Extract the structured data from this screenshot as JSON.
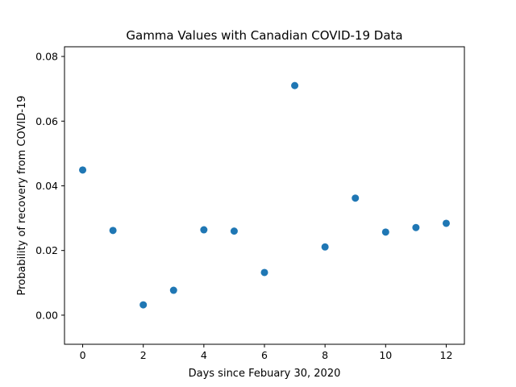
{
  "chart_data": {
    "type": "scatter",
    "title": "Gamma Values with Canadian COVID-19 Data",
    "xlabel": "Days since Febuary 30, 2020",
    "ylabel": "Probability of recovery from COVID-19",
    "xlim": [
      -0.6,
      12.6
    ],
    "ylim": [
      -0.009,
      0.083
    ],
    "xticks": [
      0,
      2,
      4,
      6,
      8,
      10,
      12
    ],
    "xtick_labels": [
      "0",
      "2",
      "4",
      "6",
      "8",
      "10",
      "12"
    ],
    "yticks": [
      0.0,
      0.02,
      0.04,
      0.06,
      0.08
    ],
    "ytick_labels": [
      "0.00",
      "0.02",
      "0.04",
      "0.06",
      "0.08"
    ],
    "grid": false,
    "marker_color": "#1f77b4",
    "series": [
      {
        "x": [
          0,
          1,
          2,
          3,
          4,
          5,
          6,
          7,
          8,
          9,
          10,
          11,
          12
        ],
        "y": [
          0.0449,
          0.0262,
          0.0032,
          0.0077,
          0.0264,
          0.026,
          0.0132,
          0.071,
          0.0211,
          0.0362,
          0.0257,
          0.0271,
          0.0284
        ]
      }
    ]
  }
}
